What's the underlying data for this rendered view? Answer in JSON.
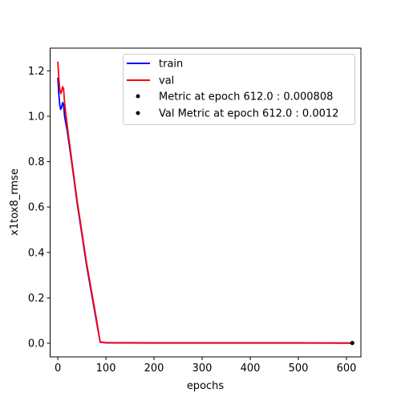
{
  "chart_data": {
    "type": "line",
    "title": "",
    "xlabel": "epochs",
    "ylabel": "x1tox8_rmse",
    "xlim": [
      -16,
      630
    ],
    "ylim": [
      -0.06,
      1.3
    ],
    "x_ticks": [
      0,
      100,
      200,
      300,
      400,
      500,
      600
    ],
    "x_tick_labels": [
      "0",
      "100",
      "200",
      "300",
      "400",
      "500",
      "600"
    ],
    "y_ticks": [
      0.0,
      0.2,
      0.4,
      0.6,
      0.8,
      1.0,
      1.2
    ],
    "y_tick_labels": [
      "0.0",
      "0.2",
      "0.4",
      "0.6",
      "0.8",
      "1.0",
      "1.2"
    ],
    "grid": false,
    "legend_position": "top-right",
    "series": [
      {
        "name": "train",
        "color": "#0000ff",
        "points": [
          [
            0,
            1.17
          ],
          [
            2,
            1.1
          ],
          [
            4,
            1.05
          ],
          [
            6,
            1.03
          ],
          [
            8,
            1.04
          ],
          [
            10,
            1.06
          ],
          [
            12,
            1.05
          ],
          [
            14,
            1.0
          ],
          [
            20,
            0.93
          ],
          [
            30,
            0.78
          ],
          [
            40,
            0.62
          ],
          [
            50,
            0.48
          ],
          [
            60,
            0.34
          ],
          [
            70,
            0.22
          ],
          [
            80,
            0.1
          ],
          [
            88,
            0.005
          ],
          [
            100,
            0.002
          ],
          [
            200,
            0.001
          ],
          [
            300,
            0.001
          ],
          [
            400,
            0.001
          ],
          [
            500,
            0.001
          ],
          [
            612,
            0.000808
          ]
        ]
      },
      {
        "name": "val",
        "color": "#ff0000",
        "points": [
          [
            0,
            1.24
          ],
          [
            2,
            1.17
          ],
          [
            4,
            1.12
          ],
          [
            6,
            1.1
          ],
          [
            8,
            1.11
          ],
          [
            10,
            1.13
          ],
          [
            12,
            1.12
          ],
          [
            14,
            1.06
          ],
          [
            20,
            0.95
          ],
          [
            30,
            0.79
          ],
          [
            40,
            0.63
          ],
          [
            50,
            0.49
          ],
          [
            60,
            0.35
          ],
          [
            70,
            0.23
          ],
          [
            80,
            0.11
          ],
          [
            88,
            0.006
          ],
          [
            100,
            0.003
          ],
          [
            200,
            0.002
          ],
          [
            300,
            0.002
          ],
          [
            400,
            0.002
          ],
          [
            500,
            0.002
          ],
          [
            612,
            0.0012
          ]
        ]
      }
    ],
    "markers": [
      {
        "name": "Metric at epoch 612.0 : 0.000808",
        "x": 612,
        "y": 0.000808,
        "color": "#000000"
      },
      {
        "name": "Val Metric at epoch 612.0 : 0.0012",
        "x": 612,
        "y": 0.0012,
        "color": "#000000"
      }
    ]
  }
}
